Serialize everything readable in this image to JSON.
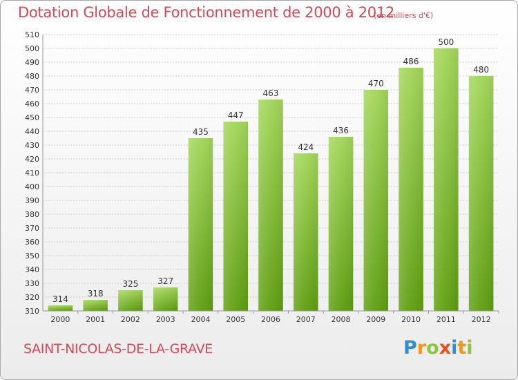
{
  "chart_data": {
    "type": "bar",
    "title": "Dotation Globale de Fonctionnement de 2000 à 2012",
    "subtitle": "(en milliers d'€)",
    "categories": [
      "2000",
      "2001",
      "2002",
      "2003",
      "2004",
      "2005",
      "2006",
      "2007",
      "2008",
      "2009",
      "2010",
      "2011",
      "2012"
    ],
    "values": [
      314,
      318,
      325,
      327,
      435,
      447,
      463,
      424,
      436,
      470,
      486,
      500,
      480
    ],
    "ylim": [
      310,
      510
    ],
    "yticks": [
      310,
      320,
      330,
      340,
      350,
      360,
      370,
      380,
      390,
      400,
      410,
      420,
      430,
      440,
      450,
      460,
      470,
      480,
      490,
      500,
      510
    ],
    "grid": true,
    "bar_color_top": "#a3d65a",
    "bar_color_bottom": "#5e9e10"
  },
  "commune": "SAINT-NICOLAS-DE-LA-GRAVE",
  "logo": {
    "letters": [
      "P",
      "r",
      "o",
      "x",
      "i",
      "t",
      "i"
    ],
    "colors": [
      "#2f8fd1",
      "#f7941d",
      "#8cc63f",
      "#e94e1b",
      "#2f8fd1",
      "#f7941d",
      "#8cc63f"
    ]
  },
  "colors": {
    "title": "#d04a57",
    "grid": "#cccccc",
    "axis_text": "#333333"
  }
}
